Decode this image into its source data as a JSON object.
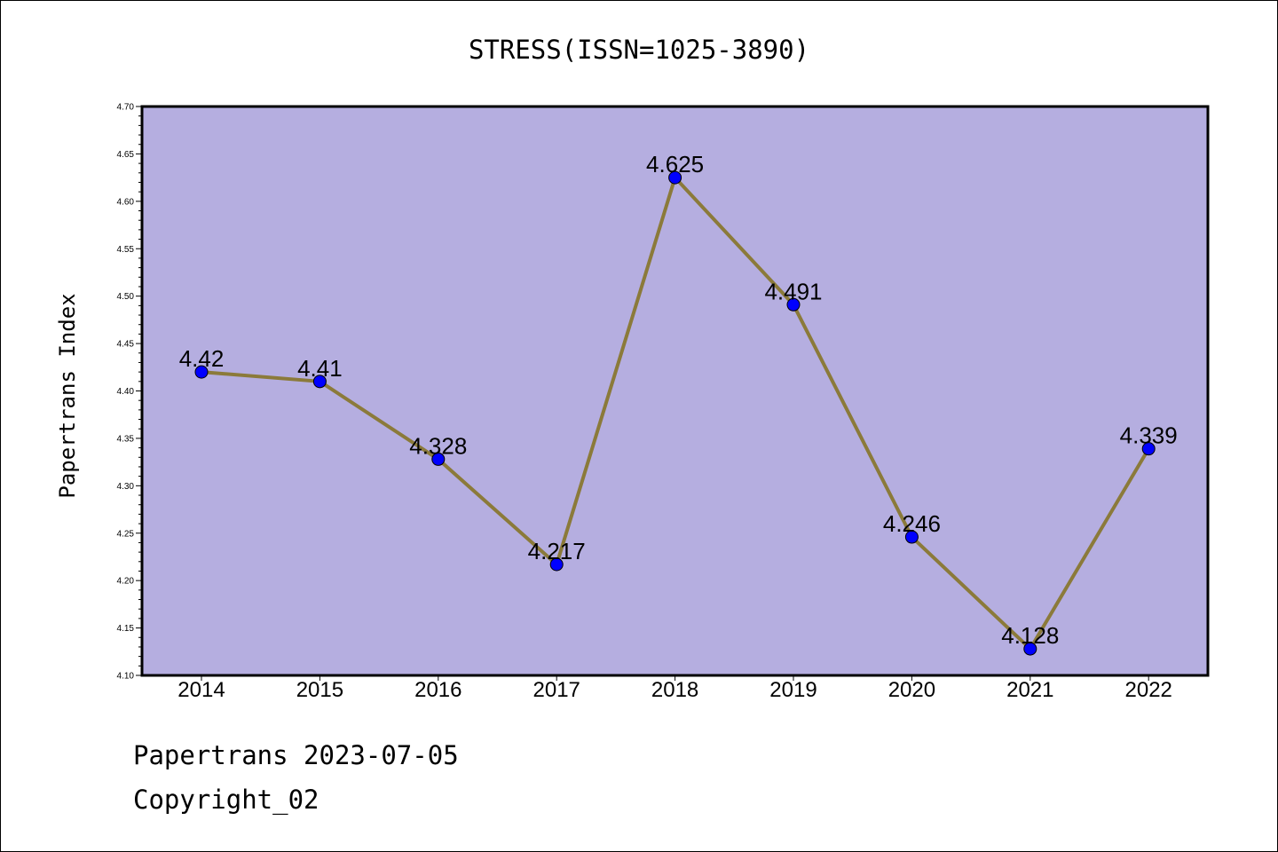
{
  "chart_data": {
    "type": "line",
    "title": "STRESS(ISSN=1025-3890)",
    "xlabel": "",
    "ylabel": "Papertrans Index",
    "categories": [
      "2014",
      "2015",
      "2016",
      "2017",
      "2018",
      "2019",
      "2020",
      "2021",
      "2022"
    ],
    "series": [
      {
        "values": [
          4.42,
          4.41,
          4.328,
          4.217,
          4.625,
          4.491,
          4.246,
          4.128,
          4.339
        ],
        "data_labels": [
          "4.42",
          "4.41",
          "4.328",
          "4.217",
          "4.625",
          "4.491",
          "4.246",
          "4.128",
          "4.339"
        ]
      }
    ],
    "ylim": [
      4.1,
      4.7
    ],
    "yticks": [
      "4.10",
      "4.15",
      "4.20",
      "4.25",
      "4.30",
      "4.35",
      "4.40",
      "4.45",
      "4.50",
      "4.55",
      "4.60",
      "4.65",
      "4.70"
    ],
    "grid": false,
    "legend": "none",
    "colors": {
      "plot_background": "#b5aee0",
      "line": "#8b7a3a",
      "marker": "#0000ff"
    }
  },
  "footer": {
    "line1": "Papertrans 2023-07-05",
    "line2": "Copyright_02"
  }
}
